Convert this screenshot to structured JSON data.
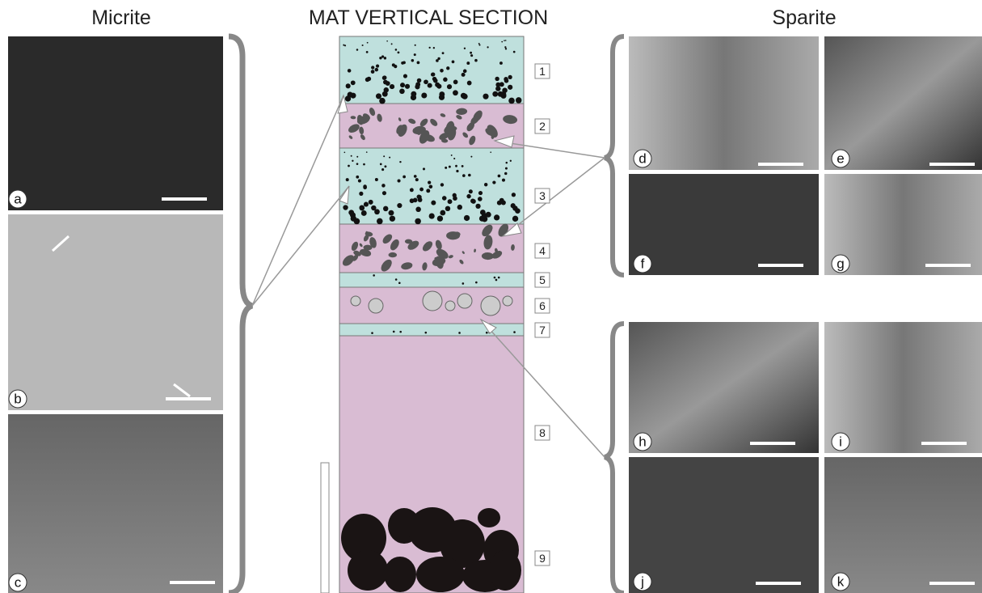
{
  "header": {
    "left": "Micrite",
    "center": "MAT VERTICAL SECTION",
    "right": "Sparite"
  },
  "panels": [
    "a",
    "b",
    "c",
    "d",
    "e",
    "f",
    "g",
    "h",
    "i",
    "j",
    "k"
  ],
  "layers": [
    "1",
    "2",
    "3",
    "4",
    "5",
    "6",
    "7",
    "8",
    "9"
  ]
}
